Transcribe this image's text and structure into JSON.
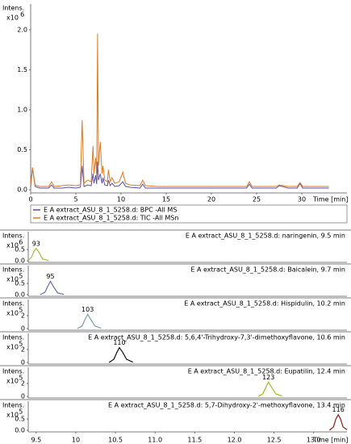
{
  "chart_data": [
    {
      "type": "line",
      "y_label": "Intens.",
      "y_scale_label": "x10",
      "y_scale_exponent": 6,
      "x_label": "Time [min]",
      "xlim": [
        0,
        35
      ],
      "ylim": [
        0,
        2.05
      ],
      "xticks": [
        0,
        5,
        10,
        15,
        20,
        25,
        30
      ],
      "yticks": [
        {
          "value": 0,
          "label": "0.0"
        },
        {
          "value": 0.5,
          "label": "0.5"
        },
        {
          "value": 1,
          "label": "1.0"
        },
        {
          "value": 1.5,
          "label": "1.5"
        },
        {
          "value": 2,
          "label": "2.0"
        }
      ],
      "legend_position": "below",
      "x": [
        0,
        0.2,
        0.5,
        1,
        2,
        2.3,
        2.6,
        3.5,
        4.2,
        5,
        5.5,
        5.7,
        5.9,
        6.3,
        6.7,
        6.9,
        7.0,
        7.2,
        7.3,
        7.4,
        7.5,
        7.7,
        7.9,
        8.0,
        8.2,
        8.5,
        8.6,
        8.8,
        9.0,
        9.3,
        9.8,
        10.2,
        10.5,
        11,
        12.1,
        12.4,
        12.7,
        14,
        16,
        18,
        20,
        22,
        23.9,
        24.2,
        24.5,
        26,
        27.2,
        27.5,
        28.5,
        29.5,
        29.8,
        30.1,
        31,
        32,
        33
      ],
      "series": [
        {
          "name": "E A extract_ASU_8_1_5258.d: BPC -All MS",
          "color": "#5a4fa8",
          "values": [
            0.03,
            0.27,
            0.04,
            0.02,
            0.02,
            0.06,
            0.02,
            0.02,
            0.03,
            0.02,
            0.03,
            0.3,
            0.04,
            0.06,
            0.05,
            0.2,
            0.08,
            0.18,
            0.07,
            0.35,
            0.12,
            0.2,
            0.08,
            0.15,
            0.06,
            0.05,
            0.12,
            0.05,
            0.08,
            0.04,
            0.05,
            0.1,
            0.04,
            0.03,
            0.02,
            0.07,
            0.02,
            0.02,
            0.02,
            0.02,
            0.02,
            0.02,
            0.02,
            0.07,
            0.02,
            0.02,
            0.02,
            0.05,
            0.02,
            0.02,
            0.08,
            0.02,
            0.02,
            0.02,
            0.02
          ]
        },
        {
          "name": "E A extract_ASU_8_1_5258.d: TIC -All MSn",
          "color": "#e07a1f",
          "values": [
            0.05,
            0.28,
            0.06,
            0.04,
            0.04,
            0.1,
            0.04,
            0.05,
            0.06,
            0.05,
            0.06,
            0.87,
            0.08,
            0.12,
            0.1,
            0.55,
            0.2,
            0.4,
            0.15,
            1.95,
            0.3,
            0.6,
            0.2,
            0.3,
            0.12,
            0.1,
            0.25,
            0.1,
            0.15,
            0.08,
            0.1,
            0.22,
            0.08,
            0.06,
            0.05,
            0.12,
            0.05,
            0.04,
            0.04,
            0.04,
            0.04,
            0.04,
            0.04,
            0.1,
            0.04,
            0.04,
            0.04,
            0.06,
            0.04,
            0.04,
            0.09,
            0.04,
            0.04,
            0.04,
            0.04
          ]
        }
      ]
    },
    {
      "type": "line",
      "title": "E A extract_ASU_8_1_5258.d: naringenin, 9.5 min",
      "y_label": "Intens.",
      "y_scale_label": "x10",
      "y_scale_exponent": 6,
      "xlim": [
        9.4,
        13.42
      ],
      "ylim": [
        0,
        1.3
      ],
      "yticks": [
        {
          "value": 0,
          "label": "0.0"
        },
        {
          "value": 0.5,
          "label": "0.5"
        }
      ],
      "peak_label": 93,
      "color": "#9cc43a",
      "x": [
        9.4,
        9.44,
        9.47,
        9.5,
        9.54,
        9.58,
        9.66
      ],
      "values": [
        0.02,
        0.15,
        0.4,
        0.55,
        0.35,
        0.08,
        0.01
      ]
    },
    {
      "type": "line",
      "title": "E A extract_ASU_8_1_5258.d: Baicalein, 9.7 min",
      "y_label": "Intens.",
      "y_scale_label": "x10",
      "y_scale_exponent": 5,
      "xlim": [
        9.4,
        13.42
      ],
      "ylim": [
        0,
        1.3
      ],
      "yticks": [
        {
          "value": 0,
          "label": "0.0"
        },
        {
          "value": 0.5,
          "label": "0.5"
        }
      ],
      "peak_label": 95,
      "color": "#6a68b8",
      "x": [
        9.55,
        9.61,
        9.65,
        9.68,
        9.72,
        9.77,
        9.85
      ],
      "values": [
        0,
        0.1,
        0.4,
        0.6,
        0.35,
        0.08,
        0.01
      ]
    },
    {
      "type": "line",
      "title": "E A extract_ASU_8_1_5258.d: Hispidulin, 10.2 min",
      "y_label": "Intens.",
      "y_scale_label": "x10",
      "y_scale_exponent": 5,
      "xlim": [
        9.4,
        13.42
      ],
      "ylim": [
        0,
        4.5
      ],
      "yticks": [
        0,
        2
      ],
      "peak_label": 103,
      "color": "#7a9aa8",
      "x": [
        10.02,
        10.08,
        10.12,
        10.15,
        10.19,
        10.24,
        10.32
      ],
      "values": [
        0,
        0.4,
        1.5,
        2.2,
        1.4,
        0.4,
        0.05
      ]
    },
    {
      "type": "line",
      "title": "E A extract_ASU_8_1_5258.d: 5,6,4'-Trihydroxy-7,3'-dimethoxyflavone, 10.6 min",
      "y_label": "Intens.",
      "y_scale_label": "x10",
      "y_scale_exponent": 5,
      "xlim": [
        9.4,
        13.42
      ],
      "ylim": [
        0,
        4.5
      ],
      "yticks": [
        0,
        2
      ],
      "peak_label": 110,
      "color": "#111111",
      "x": [
        10.42,
        10.48,
        10.52,
        10.55,
        10.59,
        10.64,
        10.72
      ],
      "values": [
        0,
        0.5,
        1.6,
        2.3,
        1.6,
        0.5,
        0.05
      ]
    },
    {
      "type": "line",
      "title": "E A extract_ASU_8_1_5258.d: Eupatilin, 12.4 min",
      "y_label": "Intens.",
      "y_scale_label": "x10",
      "y_scale_exponent": 5,
      "xlim": [
        9.4,
        13.42
      ],
      "ylim": [
        0,
        4.5
      ],
      "yticks": [
        0,
        2
      ],
      "peak_label": 123,
      "color": "#a6b81e",
      "x": [
        12.3,
        12.36,
        12.4,
        12.43,
        12.47,
        12.52,
        12.6
      ],
      "values": [
        0,
        0.4,
        1.5,
        2.2,
        1.4,
        0.4,
        0.05
      ]
    },
    {
      "type": "line",
      "title": "E A extract_ASU_8_1_5258.d: 5,7-Dihydroxy-2'-methoxyflavone, 13.4 min",
      "y_label": "Intens.",
      "y_scale_label": "x10",
      "y_scale_exponent": 5,
      "x_label": "Time [min]",
      "xlim": [
        9.4,
        13.42
      ],
      "ylim": [
        0,
        1.3
      ],
      "yticks": [
        {
          "value": 0,
          "label": "0.0"
        },
        {
          "value": 0.5,
          "label": "0.5"
        }
      ],
      "xticks": [
        9.5,
        10,
        {
          "value": 10.5,
          "label": "10.5"
        },
        {
          "value": 11,
          "label": "11.0"
        },
        11.5,
        {
          "value": 12,
          "label": "12.0"
        },
        12.5,
        {
          "value": 13,
          "label": "13.0"
        }
      ],
      "peak_label": 116,
      "color": "#8b1a1a",
      "x": [
        13.2,
        13.25,
        13.28,
        13.31,
        13.34,
        13.37,
        13.42
      ],
      "values": [
        0,
        0.15,
        0.5,
        0.7,
        0.5,
        0.15,
        0.02
      ]
    }
  ]
}
